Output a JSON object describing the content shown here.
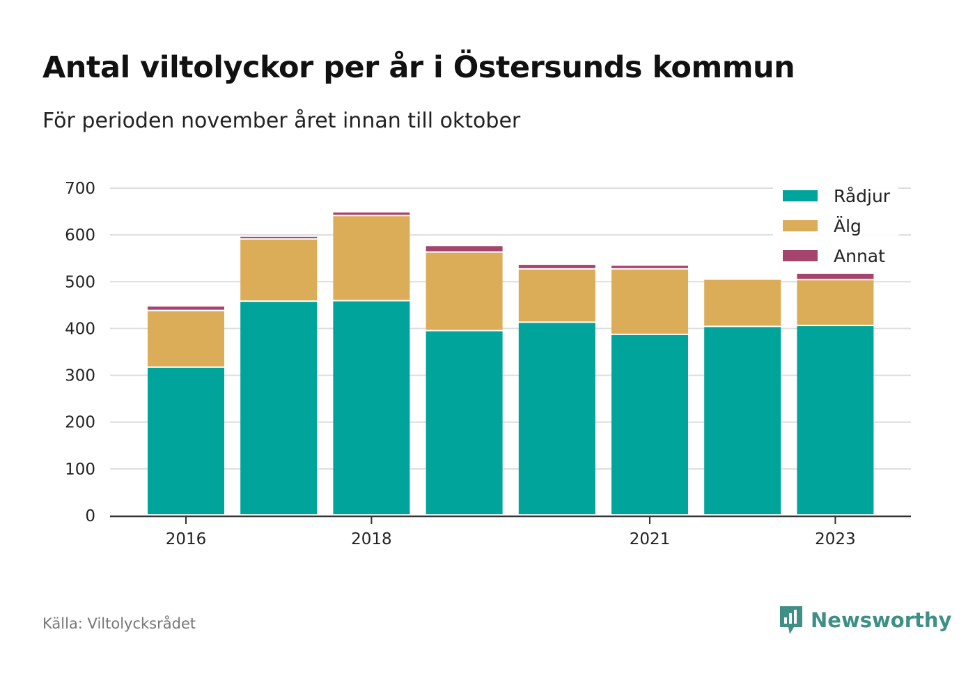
{
  "header": {
    "title": "Antal viltolyckor per år i Östersunds kommun",
    "subtitle": "För perioden november året innan till oktober"
  },
  "footer": {
    "source": "Källa: Viltolycksrådet",
    "brand": "Newsworthy",
    "brand_icon": "bar-chart-speech-bubble-icon",
    "brand_color": "#3e8f86"
  },
  "chart_data": {
    "type": "bar",
    "stacked": true,
    "categories": [
      2016,
      2017,
      2018,
      2019,
      2020,
      2021,
      2022,
      2023
    ],
    "x_tick_labels": [
      "2016",
      "2018",
      "2021",
      "2023"
    ],
    "series": [
      {
        "name": "Rådjur",
        "color": "#00a49a",
        "values": [
          316,
          457,
          458,
          394,
          412,
          386,
          403,
          405
        ]
      },
      {
        "name": "Älg",
        "color": "#dbad59",
        "values": [
          121,
          133,
          182,
          168,
          114,
          140,
          101,
          98
        ]
      },
      {
        "name": "Annat",
        "color": "#a5456e",
        "values": [
          10,
          6,
          8,
          14,
          10,
          8,
          0,
          14
        ]
      }
    ],
    "ylim": [
      0,
      700
    ],
    "y_ticks": [
      0,
      100,
      200,
      300,
      400,
      500,
      600,
      700
    ],
    "grid": true,
    "legend_position": "top-right",
    "xlabel": "",
    "ylabel": ""
  }
}
